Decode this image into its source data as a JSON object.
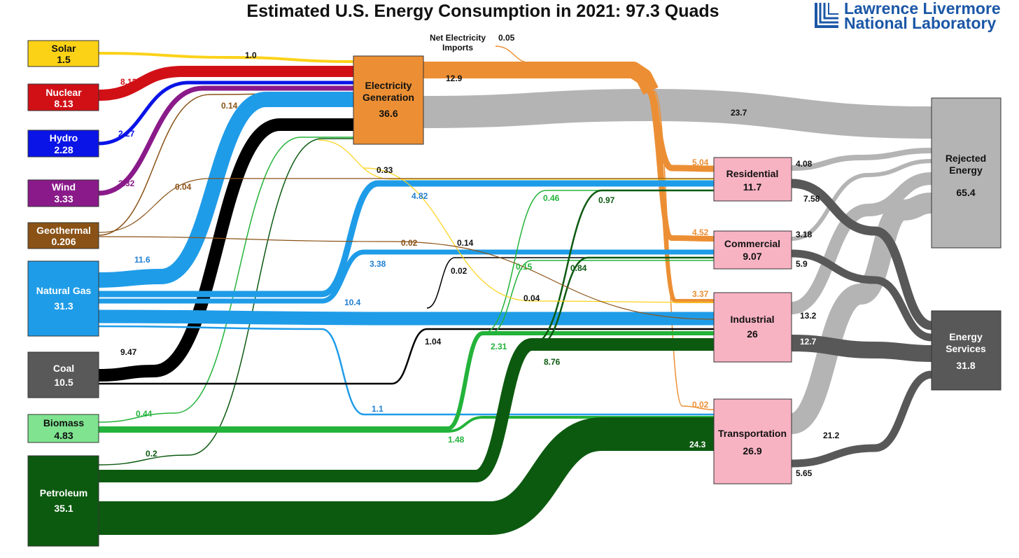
{
  "title": "Estimated U.S. Energy Consumption in 2021: 97.3 Quads",
  "logo": {
    "line1": "Lawrence Livermore",
    "line2": "National Laboratory"
  },
  "colors": {
    "solar": "#fcd217",
    "nuclear": "#d11016",
    "hydro": "#0a14e6",
    "wind": "#8a1a8a",
    "geothermal": "#8a5216",
    "natural_gas": "#1f9ce8",
    "coal": "#000000",
    "biomass": "#23b33a",
    "petroleum": "#0c5a10",
    "electricity": "#ec8f34",
    "rejected": "#b4b4b4",
    "services": "#585858",
    "sector": "#f8b3c3"
  },
  "sources": {
    "solar": {
      "name": "Solar",
      "value": "1.5"
    },
    "nuclear": {
      "name": "Nuclear",
      "value": "8.13"
    },
    "hydro": {
      "name": "Hydro",
      "value": "2.28"
    },
    "wind": {
      "name": "Wind",
      "value": "3.33"
    },
    "geothermal": {
      "name": "Geothermal",
      "value": "0.206"
    },
    "natural_gas": {
      "name": "Natural Gas",
      "value": "31.3"
    },
    "coal": {
      "name": "Coal",
      "value": "10.5"
    },
    "biomass": {
      "name": "Biomass",
      "value": "4.83"
    },
    "petroleum": {
      "name": "Petroleum",
      "value": "35.1"
    }
  },
  "electricity": {
    "line1": "Electricity",
    "line2": "Generation",
    "value": "36.6"
  },
  "net_imports": {
    "line1": "Net Electricity",
    "line2": "Imports",
    "value": "0.05"
  },
  "sectors": {
    "residential": {
      "name": "Residential",
      "value": "11.7"
    },
    "commercial": {
      "name": "Commercial",
      "value": "9.07"
    },
    "industrial": {
      "name": "Industrial",
      "value": "26"
    },
    "transportation": {
      "name": "Transportation",
      "value": "26.9"
    }
  },
  "rejected": {
    "line1": "Rejected",
    "line2": "Energy",
    "value": "65.4"
  },
  "services": {
    "line1": "Energy",
    "line2": "Services",
    "value": "31.8"
  },
  "flow_values": {
    "solar_elec": "1.0",
    "nuclear_elec": "8.13",
    "hydro_elec": "2.27",
    "wind_elec": "3.32",
    "geo_elec": "0.14",
    "geo_res": "0.04",
    "geo_ind": "0.02",
    "ng_elec": "11.6",
    "ng_res": "4.82",
    "ng_com": "3.38",
    "ng_ind": "10.4",
    "ng_tra": "1.1",
    "coal_elec": "9.47",
    "coal_com": "0.02",
    "coal_ind": "1.04",
    "bio_elec": "0.44",
    "bio_res": "0.46",
    "bio_com": "0.15",
    "bio_ind": "2.31",
    "bio_tra": "1.48",
    "pet_elec": "0.2",
    "pet_res": "0.97",
    "pet_com": "0.84",
    "pet_ind": "8.76",
    "pet_tra": "24.3",
    "solar_res": "0.33",
    "solar_com": "0.14",
    "solar_ind": "0.04",
    "elec_total": "12.9",
    "elec_rej": "23.7",
    "elec_res": "5.04",
    "elec_com": "4.52",
    "elec_ind": "3.37",
    "elec_tra": "0.02",
    "res_rej": "4.08",
    "res_srv": "7.58",
    "com_rej": "3.18",
    "com_srv": "5.9",
    "ind_rej": "13.2",
    "ind_srv": "12.7",
    "tra_rej": "21.2",
    "tra_srv": "5.65"
  }
}
